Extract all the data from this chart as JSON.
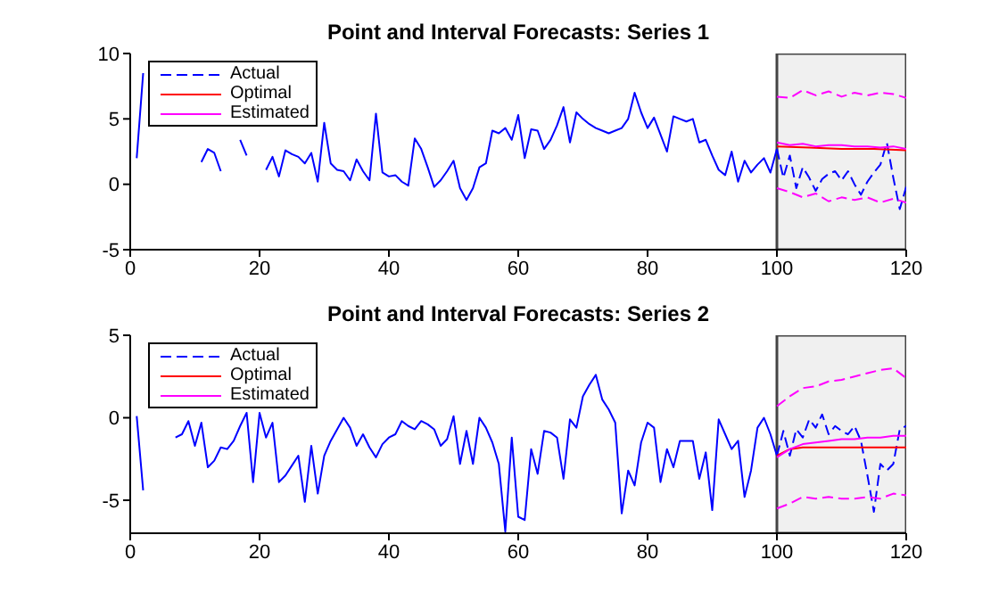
{
  "chart_data": [
    {
      "type": "line",
      "title": "Point and Interval Forecasts: Series 1",
      "xlim": [
        0,
        120
      ],
      "xticks": [
        0,
        20,
        40,
        60,
        80,
        100,
        120
      ],
      "ylim": [
        -5,
        10
      ],
      "yticks": [
        -5,
        0,
        5,
        10
      ],
      "legend": "top left",
      "marker": "none",
      "bands": [
        {
          "axis": "x",
          "from": 100,
          "to": 120,
          "color": "#f0f0f0"
        }
      ],
      "series": [
        {
          "color": "#0000ff",
          "line_style": "solid",
          "x": [
            1,
            2,
            3,
            4,
            5,
            6,
            7,
            8,
            9,
            10,
            11,
            12,
            13,
            14,
            15,
            16,
            17,
            18,
            19,
            20,
            21,
            22,
            23,
            24,
            25,
            26,
            27,
            28,
            29,
            30,
            31,
            32,
            33,
            34,
            35,
            36,
            37,
            38,
            39,
            40,
            41,
            42,
            43,
            44,
            45,
            46,
            47,
            48,
            49,
            50,
            51,
            52,
            53,
            54,
            55,
            56,
            57,
            58,
            59,
            60,
            61,
            62,
            63,
            64,
            65,
            66,
            67,
            68,
            69,
            70,
            71,
            72,
            73,
            74,
            75,
            76,
            77,
            78,
            79,
            80,
            81,
            82,
            83,
            84,
            85,
            86,
            87,
            88,
            89,
            90,
            91,
            92,
            93,
            94,
            95,
            96,
            97,
            98,
            99,
            100
          ],
          "values": [
            2.0,
            8.5,
            null,
            null,
            null,
            null,
            null,
            null,
            null,
            null,
            1.7,
            2.7,
            2.4,
            1.0,
            null,
            null,
            3.4,
            2.2,
            null,
            null,
            1.1,
            2.1,
            0.6,
            2.6,
            2.3,
            2.1,
            1.6,
            2.4,
            0.2,
            4.7,
            1.6,
            1.1,
            1.0,
            0.3,
            1.9,
            1.0,
            0.3,
            5.4,
            0.9,
            0.6,
            0.7,
            0.2,
            -0.1,
            3.5,
            2.7,
            1.3,
            -0.2,
            0.3,
            1.0,
            1.8,
            -0.3,
            -1.2,
            -0.3,
            1.3,
            1.6,
            4.1,
            3.9,
            4.3,
            3.4,
            5.3,
            2.0,
            4.2,
            4.1,
            2.7,
            3.4,
            4.5,
            5.9,
            3.2,
            5.5,
            5.0,
            4.6,
            4.3,
            4.1,
            3.9,
            4.1,
            4.3,
            5.0,
            7.0,
            5.5,
            4.3,
            5.1,
            3.8,
            2.5,
            5.2,
            5.0,
            4.8,
            5.0,
            3.2,
            3.4,
            2.2,
            1.1,
            0.7,
            2.5,
            0.2,
            1.8,
            0.9,
            1.5,
            2.0,
            0.9,
            2.7
          ]
        },
        {
          "name": "Actual",
          "color": "#0000ff",
          "line_style": "dashed",
          "x": [
            100,
            101,
            102,
            103,
            104,
            105,
            106,
            107,
            108,
            109,
            110,
            111,
            112,
            113,
            114,
            115,
            116,
            117,
            118,
            119,
            120
          ],
          "values": [
            2.7,
            0.5,
            2.2,
            -0.3,
            1.3,
            0.5,
            -0.5,
            0.4,
            0.8,
            1.0,
            0.3,
            1.0,
            0.0,
            -0.8,
            0.2,
            0.9,
            1.5,
            3.2,
            0.5,
            -1.9,
            -0.2
          ]
        },
        {
          "name": "Optimal",
          "color": "#ff0000",
          "line_style": "solid",
          "x": [
            100,
            105,
            110,
            115,
            120
          ],
          "values": [
            2.9,
            2.8,
            2.7,
            2.7,
            2.6
          ]
        },
        {
          "name": "Estimated",
          "color": "#ff00ff",
          "line_style": "solid",
          "x": [
            100,
            102,
            104,
            106,
            108,
            110,
            112,
            114,
            116,
            118,
            120
          ],
          "values": [
            3.2,
            3.0,
            3.1,
            2.9,
            3.0,
            3.0,
            2.9,
            2.9,
            2.8,
            2.9,
            2.7
          ]
        },
        {
          "color": "#ff00ff",
          "line_style": "dashed",
          "x": [
            100,
            102,
            104,
            106,
            108,
            110,
            112,
            114,
            116,
            118,
            120
          ],
          "values": [
            -0.3,
            -0.6,
            -1.0,
            -0.7,
            -1.3,
            -1.0,
            -1.2,
            -1.0,
            -1.4,
            -1.1,
            -1.4
          ]
        },
        {
          "color": "#ff00ff",
          "line_style": "dashed",
          "x": [
            100,
            102,
            104,
            106,
            108,
            110,
            112,
            114,
            116,
            118,
            120
          ],
          "values": [
            6.7,
            6.6,
            7.2,
            6.8,
            7.1,
            6.7,
            7.0,
            6.8,
            7.0,
            6.9,
            6.6
          ]
        }
      ]
    },
    {
      "type": "line",
      "title": "Point and Interval Forecasts: Series 2",
      "xlim": [
        0,
        120
      ],
      "xticks": [
        0,
        20,
        40,
        60,
        80,
        100,
        120
      ],
      "ylim": [
        -7,
        5
      ],
      "yticks": [
        -5,
        0,
        5
      ],
      "legend": "top left",
      "marker": "none",
      "bands": [
        {
          "axis": "x",
          "from": 100,
          "to": 120,
          "color": "#f0f0f0"
        }
      ],
      "series": [
        {
          "color": "#0000ff",
          "line_style": "solid",
          "x": [
            1,
            2,
            3,
            4,
            5,
            6,
            7,
            8,
            9,
            10,
            11,
            12,
            13,
            14,
            15,
            16,
            17,
            18,
            19,
            20,
            21,
            22,
            23,
            24,
            25,
            26,
            27,
            28,
            29,
            30,
            31,
            32,
            33,
            34,
            35,
            36,
            37,
            38,
            39,
            40,
            41,
            42,
            43,
            44,
            45,
            46,
            47,
            48,
            49,
            50,
            51,
            52,
            53,
            54,
            55,
            56,
            57,
            58,
            59,
            60,
            61,
            62,
            63,
            64,
            65,
            66,
            67,
            68,
            69,
            70,
            71,
            72,
            73,
            74,
            75,
            76,
            77,
            78,
            79,
            80,
            81,
            82,
            83,
            84,
            85,
            86,
            87,
            88,
            89,
            90,
            91,
            92,
            93,
            94,
            95,
            96,
            97,
            98,
            99,
            100
          ],
          "values": [
            0.1,
            -4.4,
            null,
            null,
            null,
            null,
            -1.2,
            -1.0,
            -0.2,
            -1.7,
            -0.3,
            -3.0,
            -2.6,
            -1.8,
            -1.9,
            -1.4,
            -0.5,
            0.3,
            -3.9,
            0.3,
            -1.2,
            -0.3,
            -3.9,
            -3.5,
            -2.9,
            -2.3,
            -5.1,
            -1.7,
            -4.6,
            -2.3,
            -1.4,
            -0.7,
            0.0,
            -0.6,
            -1.7,
            -1.0,
            -1.8,
            -2.4,
            -1.6,
            -1.2,
            -1.0,
            -0.2,
            -0.5,
            -0.7,
            -0.2,
            -0.4,
            -0.7,
            -1.7,
            -1.3,
            0.1,
            -2.8,
            -0.8,
            -2.8,
            0.0,
            -0.6,
            -1.5,
            -2.8,
            -6.9,
            -1.2,
            -6.0,
            -6.2,
            -1.9,
            -3.4,
            -0.8,
            -0.9,
            -1.2,
            -3.7,
            -0.1,
            -0.6,
            1.3,
            2.0,
            2.6,
            1.1,
            0.5,
            -0.3,
            -5.8,
            -3.2,
            -4.1,
            -1.5,
            -0.3,
            -0.6,
            -3.9,
            -1.9,
            -3.0,
            -1.4,
            -1.4,
            -1.4,
            -3.7,
            -2.1,
            -5.6,
            -0.1,
            -1.0,
            -1.9,
            -1.4,
            -4.8,
            -3.2,
            -0.6,
            0.0,
            -1.0,
            -2.3
          ]
        },
        {
          "name": "Actual",
          "color": "#0000ff",
          "line_style": "dashed",
          "x": [
            100,
            101,
            102,
            103,
            104,
            105,
            106,
            107,
            108,
            109,
            110,
            111,
            112,
            113,
            114,
            115,
            116,
            117,
            118,
            119,
            120
          ],
          "values": [
            -2.3,
            -0.8,
            -2.3,
            -0.7,
            -1.2,
            -0.1,
            -0.6,
            0.2,
            -1.0,
            -0.5,
            -0.8,
            -1.0,
            -0.5,
            -1.4,
            -3.5,
            -5.7,
            -2.8,
            -3.2,
            -2.8,
            -0.7,
            -0.5
          ]
        },
        {
          "name": "Optimal",
          "color": "#ff0000",
          "line_style": "solid",
          "x": [
            100,
            102,
            104,
            110,
            120
          ],
          "values": [
            -2.3,
            -1.9,
            -1.8,
            -1.8,
            -1.8
          ]
        },
        {
          "name": "Estimated",
          "color": "#ff00ff",
          "line_style": "solid",
          "x": [
            100,
            102,
            104,
            106,
            108,
            110,
            112,
            114,
            116,
            118,
            120
          ],
          "values": [
            -2.4,
            -1.9,
            -1.6,
            -1.5,
            -1.4,
            -1.3,
            -1.3,
            -1.2,
            -1.2,
            -1.1,
            -1.1
          ]
        },
        {
          "color": "#ff00ff",
          "line_style": "dashed",
          "x": [
            100,
            102,
            104,
            106,
            108,
            110,
            112,
            114,
            116,
            118,
            120
          ],
          "values": [
            -5.5,
            -5.2,
            -4.8,
            -4.9,
            -4.8,
            -4.9,
            -4.9,
            -4.8,
            -4.9,
            -4.6,
            -4.7
          ]
        },
        {
          "color": "#ff00ff",
          "line_style": "dashed",
          "x": [
            100,
            102,
            104,
            106,
            108,
            110,
            112,
            114,
            116,
            118,
            120
          ],
          "values": [
            0.7,
            1.3,
            1.8,
            1.9,
            2.2,
            2.3,
            2.5,
            2.7,
            2.9,
            3.0,
            2.4
          ]
        }
      ]
    }
  ]
}
